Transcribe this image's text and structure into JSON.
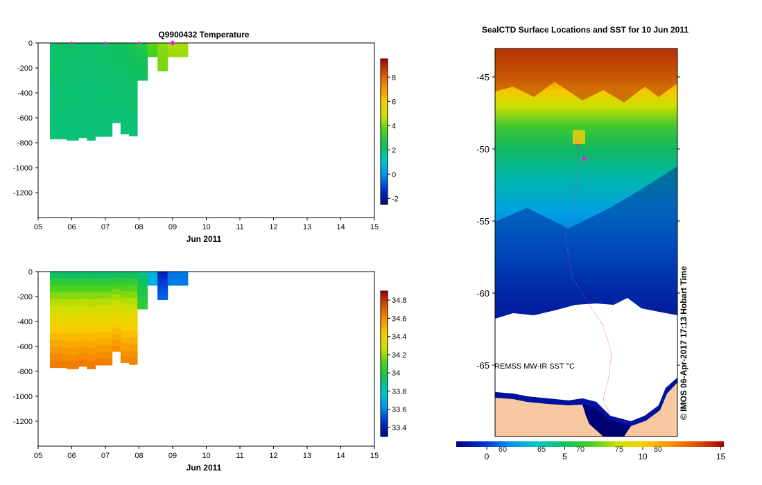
{
  "temperature_panel": {
    "title": "Q9900432  Temperature",
    "xlabel": "Jun 2011",
    "x_ticks": [
      "05",
      "06",
      "07",
      "08",
      "09",
      "10",
      "11",
      "12",
      "13",
      "14",
      "15"
    ],
    "y_ticks": [
      "0",
      "-200",
      "-400",
      "-600",
      "-800",
      "-1000",
      "-1200"
    ],
    "colorbar_ticks": [
      "8",
      "6",
      "4",
      "2",
      "0",
      "-2"
    ],
    "colorbar_colors": [
      "#000080",
      "#0030d0",
      "#0090f0",
      "#00c8c8",
      "#10c060",
      "#40d020",
      "#c8e000",
      "#f8d000",
      "#f89000",
      "#e05000",
      "#a00000"
    ]
  },
  "salinity_panel": {
    "title": "",
    "xlabel": "Jun 2011",
    "x_ticks": [
      "05",
      "06",
      "07",
      "08",
      "09",
      "10",
      "11",
      "12",
      "13",
      "14",
      "15"
    ],
    "y_ticks": [
      "0",
      "-200",
      "-400",
      "-600",
      "-800",
      "-1000",
      "-1200"
    ],
    "colorbar_ticks": [
      "34.8",
      "34.6",
      "34.4",
      "34.2",
      "34",
      "33.8",
      "33.6",
      "33.4"
    ],
    "colorbar_colors": [
      "#000080",
      "#0030d0",
      "#0090f0",
      "#00c8c8",
      "#10c060",
      "#40d020",
      "#c8e000",
      "#f8d000",
      "#f89000",
      "#e05000",
      "#a00000"
    ]
  },
  "map_panel": {
    "title": "SealCTD Surface Locations and SST for 10 Jun 2011",
    "lat_ticks": [
      "-45",
      "-50",
      "-55",
      "-60",
      "-65"
    ],
    "product_label": "REMSS MW-IR SST °C",
    "credit": "© IMOS 06-Apr-2017 17:13 Hobart Time",
    "colorbar_ticks": [
      "0",
      "5",
      "10",
      "15"
    ],
    "colorbar_overlay_ticks": [
      "60",
      "65",
      "70",
      "75",
      "80"
    ],
    "sst_colors": [
      "#000080",
      "#0030d0",
      "#0090f0",
      "#00c8c8",
      "#10c060",
      "#40d020",
      "#c8e000",
      "#f8d000",
      "#f89000",
      "#e05000",
      "#a00000"
    ],
    "land_color": "#f8c8a0",
    "ice_color": "#ffffff",
    "track_color": "#e020e0"
  },
  "chart_data": [
    {
      "type": "heatmap",
      "title": "Q9900432  Temperature",
      "xlabel": "Jun 2011",
      "ylabel": "",
      "xlim": [
        5,
        15
      ],
      "ylim": [
        -1400,
        0
      ],
      "colorbar_range": [
        -2.5,
        9.5
      ],
      "profile_days": [
        6.0,
        7.0,
        8.0,
        9.0
      ],
      "profiles": [
        {
          "x0": 5.35,
          "x1": 5.85,
          "bottom": -770,
          "surface": 2.3,
          "deep": 2.0
        },
        {
          "x0": 5.85,
          "x1": 6.2,
          "bottom": -780,
          "surface": 2.3,
          "deep": 2.0
        },
        {
          "x0": 6.2,
          "x1": 6.45,
          "bottom": -760,
          "surface": 2.2,
          "deep": 2.0
        },
        {
          "x0": 6.45,
          "x1": 6.7,
          "bottom": -780,
          "surface": 2.2,
          "deep": 2.0
        },
        {
          "x0": 6.7,
          "x1": 7.2,
          "bottom": -750,
          "surface": 2.3,
          "deep": 2.0
        },
        {
          "x0": 7.2,
          "x1": 7.45,
          "bottom": -640,
          "surface": 2.4,
          "deep": 2.0
        },
        {
          "x0": 7.45,
          "x1": 7.7,
          "bottom": -730,
          "surface": 2.4,
          "deep": 2.0
        },
        {
          "x0": 7.7,
          "x1": 7.95,
          "bottom": -745,
          "surface": 2.6,
          "deep": 2.0
        },
        {
          "x0": 7.95,
          "x1": 8.25,
          "bottom": -300,
          "surface": 2.9,
          "deep": 2.2
        },
        {
          "x0": 8.25,
          "x1": 8.55,
          "bottom": -110,
          "surface": 3.8,
          "deep": 3.5
        },
        {
          "x0": 8.55,
          "x1": 8.85,
          "bottom": -225,
          "surface": 4.2,
          "deep": 4.0
        },
        {
          "x0": 8.85,
          "x1": 9.45,
          "bottom": -110,
          "surface": 4.5,
          "deep": 4.3
        }
      ]
    },
    {
      "type": "heatmap",
      "title": "",
      "xlabel": "Jun 2011",
      "ylabel": "",
      "xlim": [
        5,
        15
      ],
      "ylim": [
        -1400,
        0
      ],
      "colorbar_range": [
        33.3,
        34.9
      ],
      "profiles": [
        {
          "x0": 5.35,
          "x1": 5.85,
          "bottom": -770,
          "surface": 33.82,
          "deep": 34.65
        },
        {
          "x0": 5.85,
          "x1": 6.2,
          "bottom": -780,
          "surface": 33.82,
          "deep": 34.65
        },
        {
          "x0": 6.2,
          "x1": 6.45,
          "bottom": -760,
          "surface": 33.82,
          "deep": 34.65
        },
        {
          "x0": 6.45,
          "x1": 6.7,
          "bottom": -780,
          "surface": 33.82,
          "deep": 34.65
        },
        {
          "x0": 6.7,
          "x1": 7.2,
          "bottom": -750,
          "surface": 33.82,
          "deep": 34.64
        },
        {
          "x0": 7.2,
          "x1": 7.45,
          "bottom": -640,
          "surface": 33.83,
          "deep": 34.6
        },
        {
          "x0": 7.45,
          "x1": 7.7,
          "bottom": -730,
          "surface": 33.83,
          "deep": 34.62
        },
        {
          "x0": 7.7,
          "x1": 7.95,
          "bottom": -745,
          "surface": 33.84,
          "deep": 34.63
        },
        {
          "x0": 7.95,
          "x1": 8.25,
          "bottom": -300,
          "surface": 33.86,
          "deep": 34.05
        },
        {
          "x0": 8.25,
          "x1": 8.55,
          "bottom": -110,
          "surface": 33.72,
          "deep": 33.72
        },
        {
          "x0": 8.55,
          "x1": 8.85,
          "bottom": -225,
          "surface": 33.38,
          "deep": 33.55
        },
        {
          "x0": 8.85,
          "x1": 9.45,
          "bottom": -110,
          "surface": 33.58,
          "deep": 33.58
        }
      ]
    }
  ]
}
